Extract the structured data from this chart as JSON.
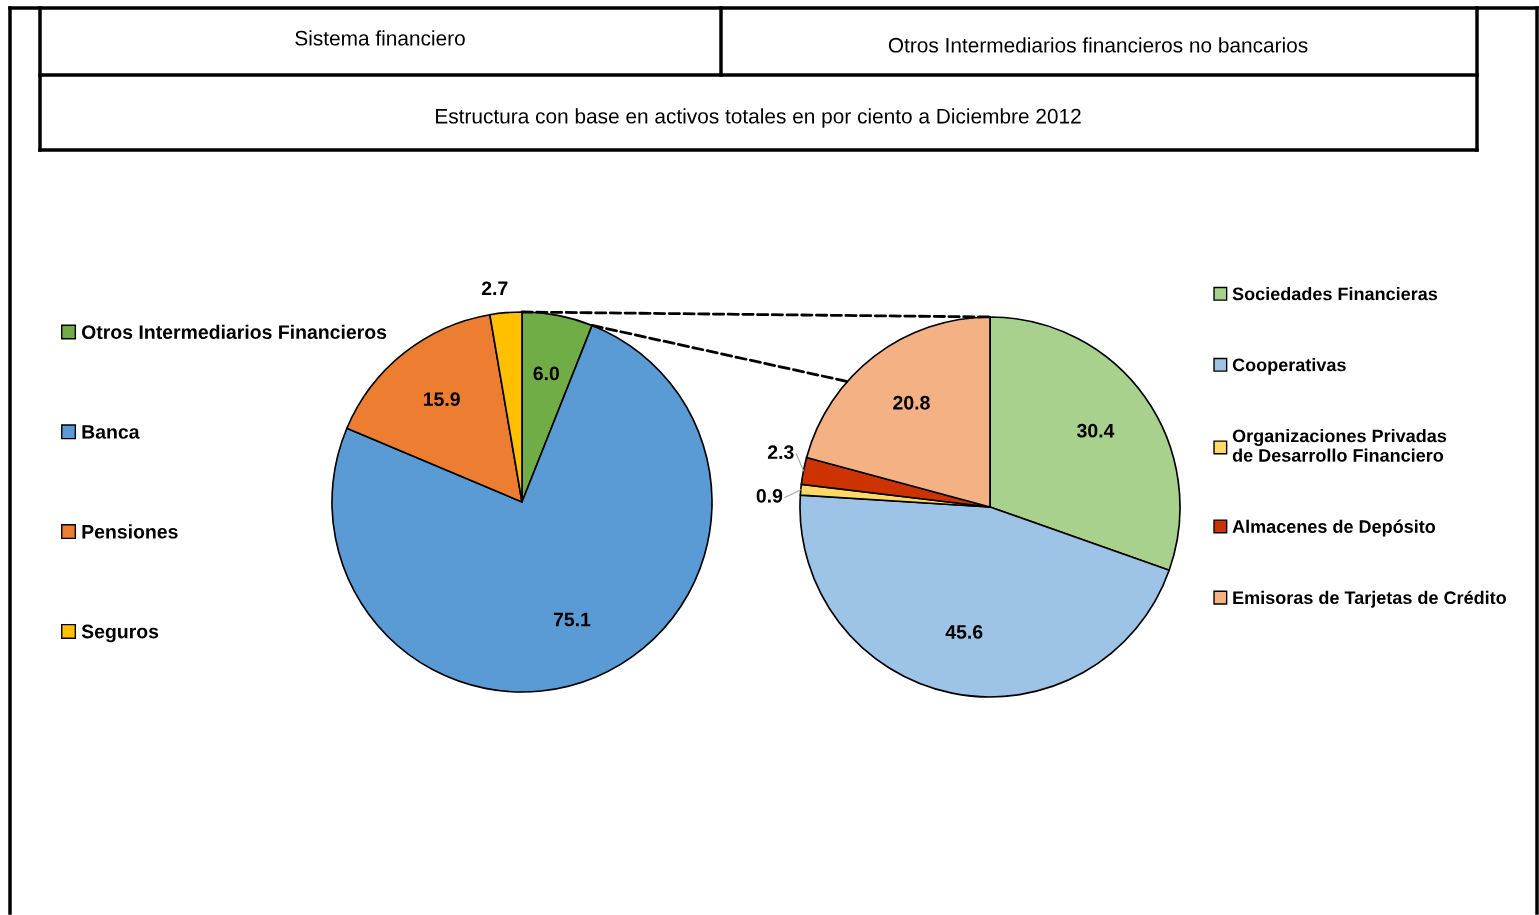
{
  "chart_data": [
    {
      "type": "pie",
      "title": "Sistema financiero",
      "subtitle": "Estructura con base en activos totales en por ciento a Diciembre 2012",
      "categories": [
        "Otros Intermediarios Financieros",
        "Banca",
        "Pensiones",
        "Seguros"
      ],
      "values": [
        6.0,
        75.1,
        15.9,
        2.7
      ],
      "value_labels": [
        "6.0",
        "75.1",
        "15.9",
        "2.7"
      ],
      "colors": [
        "#70ad47",
        "#5b9bd5",
        "#ed7d31",
        "#ffc000"
      ],
      "data_labels": true,
      "legend": "left"
    },
    {
      "type": "pie",
      "title": "Otros Intermediarios financieros no bancarios",
      "categories": [
        "Sociedades Financieras",
        "Cooperativas",
        "Organizaciones Privadas de Desarrollo Financiero",
        "Almacenes de Depósito",
        "Emisoras de Tarjetas de Crédito"
      ],
      "values": [
        30.4,
        45.6,
        0.9,
        2.3,
        20.8
      ],
      "value_labels": [
        "30.4",
        "45.6",
        "0.9",
        "2.3",
        "20.8"
      ],
      "colors": [
        "#a9d18e",
        "#9dc3e6",
        "#ffd966",
        "#cc3300",
        "#f4b183"
      ],
      "data_labels": true,
      "legend": "right"
    }
  ]
}
